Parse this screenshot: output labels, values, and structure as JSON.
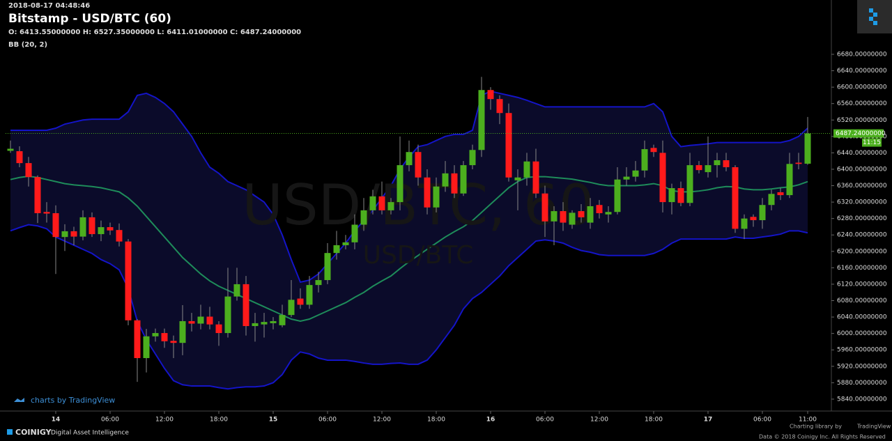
{
  "header": {
    "timestamp": "2018-08-17 04:48:46",
    "title": "Bitstamp - USD/BTC (60)",
    "ohlc": "O: 6413.55000000 H: 6527.35000000 L: 6411.01000000 C: 6487.24000000",
    "indicator": "BB (20, 2)"
  },
  "watermark": {
    "main": "USD/BTC, 60",
    "sub": "USD/BTC"
  },
  "attribution": "charts by TradingView",
  "footer": {
    "brand": "COINIGY",
    "tagline": "Digital Asset Intelligence",
    "library": "Charting library by",
    "library_name": "TradingView",
    "copyright": "Data © 2018 Coinigy Inc. All Rights Reserved"
  },
  "chart_data": {
    "type": "candlestick",
    "up_color": "#4caf1e",
    "down_color": "#ff1a1a",
    "band_color": "#1414c8",
    "middle_color": "#1e8c5a",
    "band_fill": "#0b0b2a",
    "categories": [
      null,
      null,
      null,
      null,
      null,
      "14",
      null,
      null,
      null,
      null,
      null,
      "06:00",
      null,
      null,
      null,
      null,
      null,
      "12:00",
      null,
      null,
      null,
      null,
      null,
      "18:00",
      null,
      null,
      null,
      null,
      null,
      "15",
      null,
      null,
      null,
      null,
      null,
      "06:00",
      null,
      null,
      null,
      null,
      null,
      "12:00",
      null,
      null,
      null,
      null,
      null,
      "18:00",
      null,
      null,
      null,
      null,
      null,
      "16",
      null,
      null,
      null,
      null,
      null,
      "06:00",
      null,
      null,
      null,
      null,
      null,
      "12:00",
      null,
      null,
      null,
      null,
      null,
      "18:00",
      null,
      null,
      null,
      null,
      null,
      "17",
      null,
      null,
      null,
      null,
      null,
      "06:00",
      null,
      null,
      null,
      null,
      "11:00"
    ],
    "open": [
      6445,
      6444,
      6415,
      6381,
      6296,
      6293,
      6235,
      6249,
      6236,
      6283,
      6242,
      6259,
      6252,
      6224,
      6032,
      5940,
      5993,
      6001,
      5982,
      5977,
      6030,
      6024,
      6041,
      6022,
      6001,
      6090,
      6120,
      6018,
      6022,
      6025,
      6020,
      6045,
      6085,
      6070,
      6118,
      6130,
      6196,
      6215,
      6222,
      6265,
      6300,
      6334,
      6300,
      6320,
      6410,
      6442,
      6380,
      6307,
      6358,
      6390,
      6341,
      6410,
      6447,
      6593,
      6571,
      6537,
      6373,
      6380,
      6419,
      6341,
      6273,
      6298,
      6265,
      6298,
      6270,
      6313,
      6290,
      6296,
      6375,
      6382,
      6397,
      6452,
      6440,
      6320,
      6354,
      6318,
      6410,
      6393,
      6410,
      6422,
      6405,
      6255,
      6284,
      6276,
      6313,
      6344,
      6337,
      6416,
      6413.55
    ],
    "high": [
      6470,
      6456,
      6430,
      6385,
      6320,
      6312,
      6266,
      6260,
      6300,
      6295,
      6275,
      6270,
      6268,
      6230,
      6035,
      6011,
      6012,
      6012,
      5995,
      6069,
      6050,
      6070,
      6065,
      6030,
      6160,
      6160,
      6140,
      6050,
      6050,
      6040,
      6070,
      6130,
      6110,
      6140,
      6150,
      6220,
      6250,
      6240,
      6290,
      6330,
      6350,
      6370,
      6330,
      6480,
      6470,
      6460,
      6400,
      6380,
      6420,
      6410,
      6420,
      6460,
      6625,
      6600,
      6580,
      6560,
      6400,
      6440,
      6450,
      6360,
      6310,
      6320,
      6300,
      6315,
      6330,
      6325,
      6310,
      6405,
      6405,
      6420,
      6470,
      6460,
      6470,
      6365,
      6370,
      6440,
      6420,
      6480,
      6440,
      6440,
      6410,
      6290,
      6290,
      6330,
      6350,
      6355,
      6440,
      6440,
      6527.35
    ],
    "low": [
      6440,
      6405,
      6358,
      6269,
      6270,
      6145,
      6201,
      6215,
      6227,
      6235,
      6225,
      6240,
      6212,
      6020,
      5882,
      5905,
      5980,
      5965,
      5940,
      5947,
      6005,
      6010,
      6010,
      5970,
      5990,
      6080,
      5995,
      5980,
      5990,
      6010,
      6015,
      6040,
      6060,
      6060,
      6100,
      6120,
      6180,
      6205,
      6205,
      6250,
      6290,
      6290,
      6290,
      6300,
      6395,
      6360,
      6290,
      6295,
      6345,
      6330,
      6335,
      6400,
      6430,
      6545,
      6510,
      6370,
      6300,
      6360,
      6330,
      6235,
      6215,
      6250,
      6255,
      6270,
      6255,
      6280,
      6270,
      6290,
      6360,
      6370,
      6380,
      6430,
      6295,
      6290,
      6310,
      6310,
      6390,
      6380,
      6380,
      6395,
      6245,
      6230,
      6260,
      6255,
      6300,
      6325,
      6330,
      6400,
      6411.01
    ],
    "close": [
      6450,
      6415,
      6381,
      6293,
      6292,
      6235,
      6249,
      6236,
      6283,
      6242,
      6259,
      6251,
      6224,
      6032,
      5940,
      5993,
      6001,
      5981,
      5977,
      6030,
      6024,
      6041,
      6022,
      6001,
      6090,
      6120,
      6018,
      6025,
      6028,
      6030,
      6045,
      6082,
      6070,
      6118,
      6130,
      6196,
      6215,
      6222,
      6265,
      6300,
      6334,
      6300,
      6320,
      6410,
      6442,
      6380,
      6307,
      6358,
      6390,
      6341,
      6410,
      6447,
      6593,
      6571,
      6537,
      6380,
      6380,
      6419,
      6341,
      6273,
      6298,
      6270,
      6294,
      6283,
      6310,
      6293,
      6296,
      6375,
      6382,
      6397,
      6449,
      6442,
      6320,
      6354,
      6318,
      6410,
      6398,
      6410,
      6422,
      6405,
      6255,
      6280,
      6276,
      6313,
      6340,
      6337,
      6413,
      6413,
      6487.24
    ],
    "bands": {
      "upper": [
        6495,
        6495,
        6495,
        6495,
        6495,
        6500,
        6510,
        6515,
        6520,
        6522,
        6522,
        6522,
        6522,
        6540,
        6580,
        6585,
        6575,
        6560,
        6540,
        6510,
        6480,
        6440,
        6405,
        6390,
        6370,
        6360,
        6350,
        6335,
        6320,
        6290,
        6240,
        6180,
        6125,
        6130,
        6145,
        6170,
        6195,
        6220,
        6250,
        6275,
        6300,
        6330,
        6360,
        6400,
        6430,
        6455,
        6460,
        6470,
        6480,
        6485,
        6485,
        6495,
        6580,
        6590,
        6585,
        6580,
        6575,
        6568,
        6560,
        6552,
        6552,
        6552,
        6552,
        6552,
        6552,
        6552,
        6552,
        6552,
        6552,
        6552,
        6552,
        6560,
        6540,
        6480,
        6455,
        6458,
        6460,
        6462,
        6465,
        6465,
        6465,
        6465,
        6465,
        6465,
        6465,
        6465,
        6470,
        6480,
        6500
      ],
      "middle": [
        6375,
        6380,
        6383,
        6380,
        6375,
        6370,
        6365,
        6362,
        6360,
        6358,
        6355,
        6350,
        6345,
        6330,
        6310,
        6285,
        6260,
        6235,
        6210,
        6185,
        6165,
        6145,
        6128,
        6115,
        6105,
        6095,
        6085,
        6075,
        6065,
        6055,
        6045,
        6035,
        6030,
        6035,
        6045,
        6055,
        6065,
        6075,
        6088,
        6100,
        6115,
        6128,
        6140,
        6158,
        6175,
        6190,
        6205,
        6220,
        6235,
        6248,
        6260,
        6275,
        6295,
        6315,
        6335,
        6355,
        6370,
        6380,
        6382,
        6382,
        6380,
        6378,
        6376,
        6372,
        6368,
        6363,
        6360,
        6360,
        6360,
        6360,
        6362,
        6365,
        6360,
        6348,
        6345,
        6345,
        6347,
        6350,
        6355,
        6358,
        6357,
        6352,
        6350,
        6350,
        6352,
        6355,
        6357,
        6362,
        6370
      ],
      "lower": [
        6250,
        6258,
        6265,
        6262,
        6255,
        6235,
        6225,
        6215,
        6205,
        6195,
        6180,
        6170,
        6155,
        6110,
        6030,
        5985,
        5950,
        5915,
        5885,
        5875,
        5872,
        5872,
        5872,
        5868,
        5865,
        5868,
        5870,
        5870,
        5872,
        5880,
        5900,
        5935,
        5955,
        5950,
        5940,
        5935,
        5935,
        5935,
        5932,
        5928,
        5925,
        5925,
        5927,
        5928,
        5925,
        5925,
        5935,
        5960,
        5990,
        6020,
        6060,
        6085,
        6100,
        6120,
        6140,
        6165,
        6185,
        6205,
        6225,
        6228,
        6225,
        6220,
        6210,
        6202,
        6198,
        6192,
        6190,
        6190,
        6190,
        6190,
        6190,
        6195,
        6205,
        6220,
        6230,
        6230,
        6230,
        6230,
        6230,
        6230,
        6235,
        6232,
        6232,
        6235,
        6238,
        6242,
        6250,
        6250,
        6245
      ]
    },
    "last_price": {
      "value": 6487.24,
      "label": "6487.24000000"
    },
    "countdown": "11:15",
    "ylim": [
      5811,
      6719
    ],
    "yticks": [
      {
        "value": 5840,
        "label": "5840.00000000"
      },
      {
        "value": 5880,
        "label": "5880.00000000"
      },
      {
        "value": 5920,
        "label": "5920.00000000"
      },
      {
        "value": 5960,
        "label": "5960.00000000"
      },
      {
        "value": 6000,
        "label": "6000.00000000"
      },
      {
        "value": 6040,
        "label": "6040.00000000"
      },
      {
        "value": 6080,
        "label": "6080.00000000"
      },
      {
        "value": 6120,
        "label": "6120.00000000"
      },
      {
        "value": 6160,
        "label": "6160.00000000"
      },
      {
        "value": 6200,
        "label": "6200.00000000"
      },
      {
        "value": 6240,
        "label": "6240.00000000"
      },
      {
        "value": 6280,
        "label": "6280.00000000"
      },
      {
        "value": 6320,
        "label": "6320.00000000"
      },
      {
        "value": 6360,
        "label": "6360.00000000"
      },
      {
        "value": 6400,
        "label": "6400.00000000"
      },
      {
        "value": 6440,
        "label": "6440.00000000"
      },
      {
        "value": 6480,
        "label": "6480.00000000"
      },
      {
        "value": 6520,
        "label": "6520.00000000"
      },
      {
        "value": 6560,
        "label": "6560.00000000"
      },
      {
        "value": 6600,
        "label": "6600.00000000"
      },
      {
        "value": 6640,
        "label": "6640.00000000"
      },
      {
        "value": 6680,
        "label": "6680.00000000"
      }
    ]
  }
}
